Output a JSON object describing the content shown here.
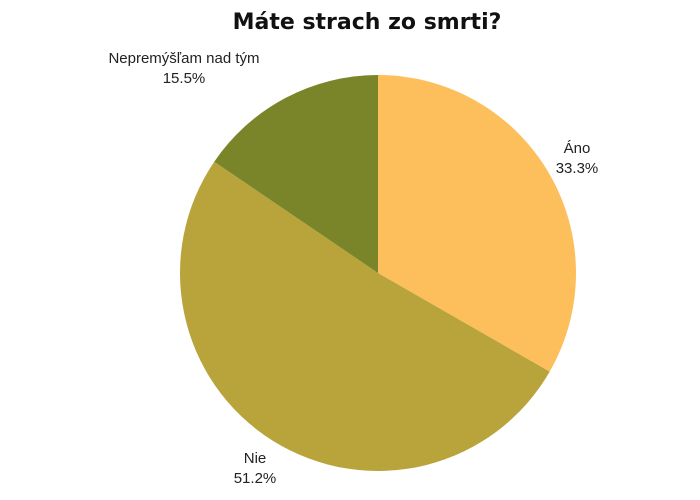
{
  "chart_data": {
    "type": "pie",
    "title": "Máte strach zo smrti?",
    "slices": [
      {
        "label": "Áno",
        "value": 33.3,
        "value_label": "33.3%",
        "color": "#FDBF5C"
      },
      {
        "label": "Nie",
        "value": 51.2,
        "value_label": "51.2%",
        "color": "#B8A43B"
      },
      {
        "label": "Nepremýšľam nad tým",
        "value": 15.5,
        "value_label": "15.5%",
        "color": "#7A8429"
      }
    ],
    "start_angle": "12 o'clock",
    "direction": "clockwise",
    "legend": "none"
  }
}
